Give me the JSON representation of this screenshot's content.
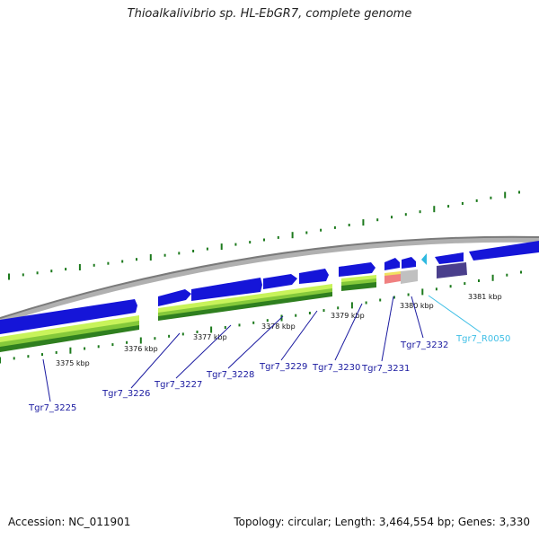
{
  "title": "Thioalkalivibrio sp. HL-EbGR7, complete genome",
  "footer": {
    "accession": "Accession: NC_011901",
    "summary": "Topology: circular; Length: 3,464,554 bp; Genes: 3,330"
  },
  "colors": {
    "backbone": "#8c8c8c",
    "cds": "#1515d8",
    "cds_light": "#6a6af2",
    "cds_dark": "#0a0a8e",
    "rrna_like": "#4a3f8c",
    "trna": "#2fb9e0",
    "tick": "#1d7a1d",
    "gene_label": "#1a1aa0",
    "trna_label": "#3fbfe6",
    "feature_light": "#c8f35a",
    "feature_mid": "#85c93a",
    "feature_dark": "#2f7f1f",
    "rrna_stripe_pink": "#f08080",
    "rrna_stripe_yellow": "#f0e060",
    "rrna_grey": "#c0c0c0"
  },
  "scale_labels": [
    {
      "text": "3375 kbp"
    },
    {
      "text": "3376 kbp"
    },
    {
      "text": "3377 kbp"
    },
    {
      "text": "3378 kbp"
    },
    {
      "text": "3379 kbp"
    },
    {
      "text": "3380 kbp"
    },
    {
      "text": "3381 kbp"
    }
  ],
  "genes": [
    {
      "name": "Tgr7_3225",
      "type": "cds"
    },
    {
      "name": "Tgr7_3226",
      "type": "cds"
    },
    {
      "name": "Tgr7_3227",
      "type": "cds"
    },
    {
      "name": "Tgr7_3228",
      "type": "cds"
    },
    {
      "name": "Tgr7_3229",
      "type": "cds"
    },
    {
      "name": "Tgr7_3230",
      "type": "cds"
    },
    {
      "name": "Tgr7_3231",
      "type": "cds"
    },
    {
      "name": "Tgr7_3232",
      "type": "cds"
    },
    {
      "name": "Tgr7_R0050",
      "type": "trna"
    }
  ]
}
